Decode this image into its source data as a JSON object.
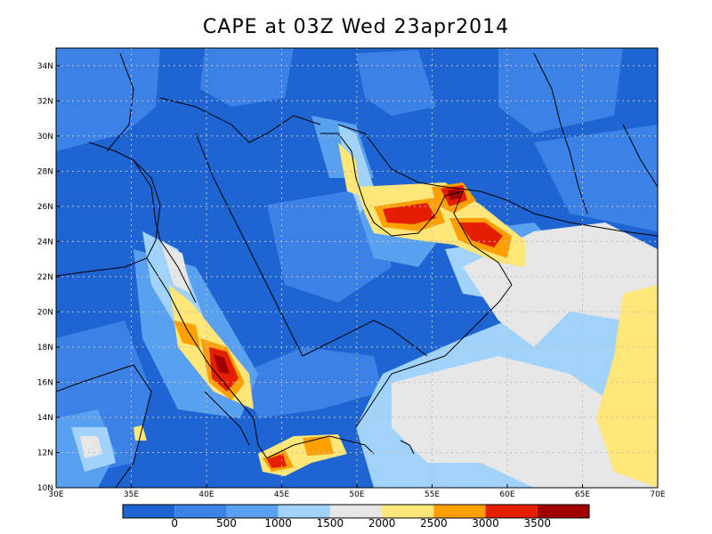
{
  "title": "CAPE at 03Z Wed 23apr2014",
  "map": {
    "lon_range": [
      30,
      70
    ],
    "lat_range": [
      10,
      35
    ],
    "x_ticks": [
      "30E",
      "35E",
      "40E",
      "45E",
      "50E",
      "55E",
      "60E",
      "65E",
      "70E"
    ],
    "y_ticks": [
      "10N",
      "12N",
      "14N",
      "16N",
      "18N",
      "20N",
      "22N",
      "24N",
      "26N",
      "28N",
      "30N",
      "32N",
      "34N"
    ],
    "grid": true,
    "background_color": "#1e6fd8"
  },
  "colorbar": {
    "labels": [
      "0",
      "500",
      "1000",
      "1500",
      "2000",
      "2500",
      "3000",
      "3500"
    ],
    "colors": [
      "#1e64d2",
      "#3c82e6",
      "#5aa0f0",
      "#a0d2fa",
      "#e6e6e6",
      "#ffe678",
      "#ffa000",
      "#e61e00",
      "#a00000"
    ]
  }
}
